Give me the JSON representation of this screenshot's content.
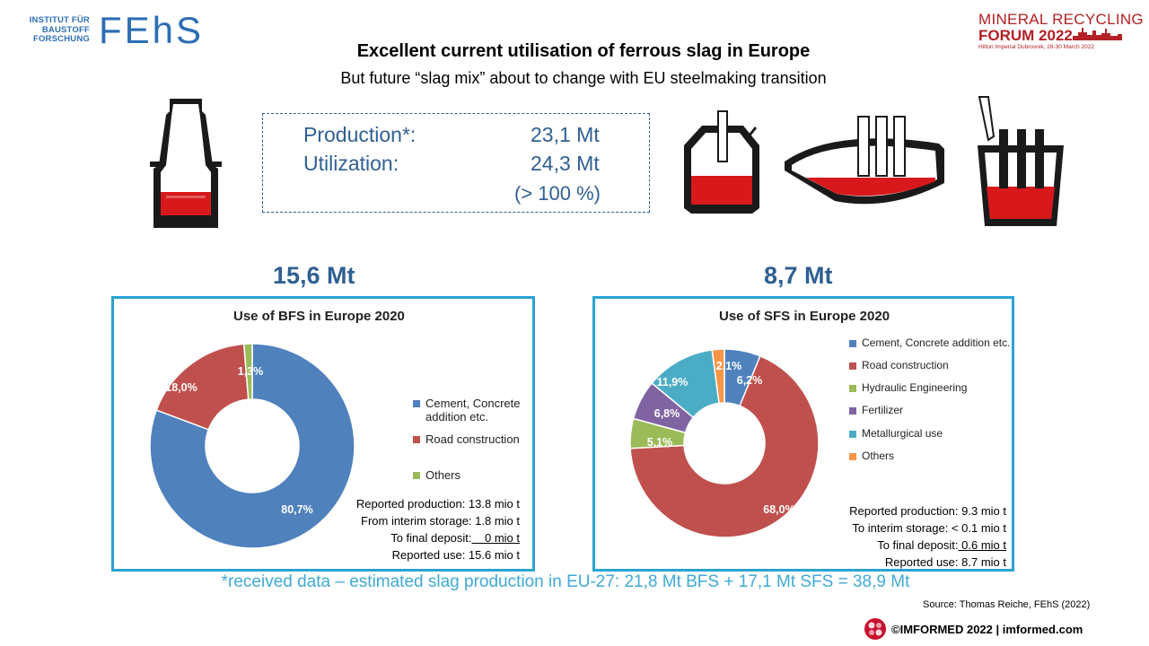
{
  "header": {
    "institute_lines": [
      "INSTITUT FÜR",
      "BAUSTOFF",
      "FORSCHUNG"
    ],
    "logo_text": "FEhS",
    "title": "Excellent current utilisation of ferrous slag in Europe",
    "subtitle": "But future “slag mix” about to change with EU steelmaking transition",
    "forum_line1": "MINERAL RECYCLING",
    "forum_line2": "FORUM 2022",
    "forum_line3": "Hilton Imperial Dubrovnik, 28-30 March 2022"
  },
  "infobox": {
    "production_label": "Production*:",
    "production_value": "23,1 Mt",
    "utilization_label": "Utilization:",
    "utilization_value": "24,3 Mt",
    "utilization_pct": "(> 100 %)"
  },
  "bfs": {
    "total": "15,6 Mt",
    "stats": {
      "line1": "Reported production: 13.8 mio t",
      "line2": "From interim storage: 1.8 mio t",
      "line3_prefix": "To final deposit:",
      "line3_value": "    0 mio t",
      "line4": "Reported use: 15.6 mio t"
    }
  },
  "sfs": {
    "total": "8,7 Mt",
    "stats": {
      "line1": "Reported production: 9.3 mio t",
      "line2": "To interim storage: < 0.1 mio t",
      "line3_prefix": "To final deposit:",
      "line3_value": " 0.6 mio t",
      "line4": "Reported use: 8.7 mio t"
    }
  },
  "chart_data": [
    {
      "type": "pie",
      "title": "Use of BFS in Europe 2020",
      "donut": true,
      "legend_position": "right",
      "slices": [
        {
          "label": "Cement, Concrete addition etc.",
          "value": 80.7,
          "display": "80,7%",
          "color": "#4f81bd"
        },
        {
          "label": "Road construction",
          "value": 18.0,
          "display": "18,0%",
          "color": "#c0504d"
        },
        {
          "label": "Others",
          "value": 1.3,
          "display": "1,3%",
          "color": "#9bbb59"
        }
      ],
      "legend": [
        "Cement, Concrete addition etc.",
        "Road construction",
        "Others"
      ]
    },
    {
      "type": "pie",
      "title": "Use of SFS in Europe 2020",
      "donut": true,
      "legend_position": "right",
      "slices": [
        {
          "label": "Cement, Concrete addition etc.",
          "value": 6.2,
          "display": "6,2%",
          "color": "#4f81bd"
        },
        {
          "label": "Road construction",
          "value": 68.0,
          "display": "68,0%",
          "color": "#c0504d"
        },
        {
          "label": "Hydraulic Engineering",
          "value": 5.1,
          "display": "5,1%",
          "color": "#9bbb59"
        },
        {
          "label": "Fertilizer",
          "value": 6.8,
          "display": "6,8%",
          "color": "#8064a2"
        },
        {
          "label": "Metallurgical use",
          "value": 11.9,
          "display": "11,9%",
          "color": "#4bacc6"
        },
        {
          "label": "Others",
          "value": 2.1,
          "display": "2,1%",
          "color": "#f79646"
        }
      ],
      "legend": [
        "Cement, Concrete addition etc.",
        "Road construction",
        "Hydraulic Engineering",
        "Fertilizer",
        "Metallurgical use",
        "Others"
      ]
    }
  ],
  "footer": {
    "note": "*received data – estimated slag production in EU-27: 21,8 Mt BFS + 17,1 Mt SFS = 38,9 Mt",
    "source": "Source: Thomas Reiche, FEhS (2022)",
    "copyright": "©IMFORMED 2022  | imformed.com"
  }
}
